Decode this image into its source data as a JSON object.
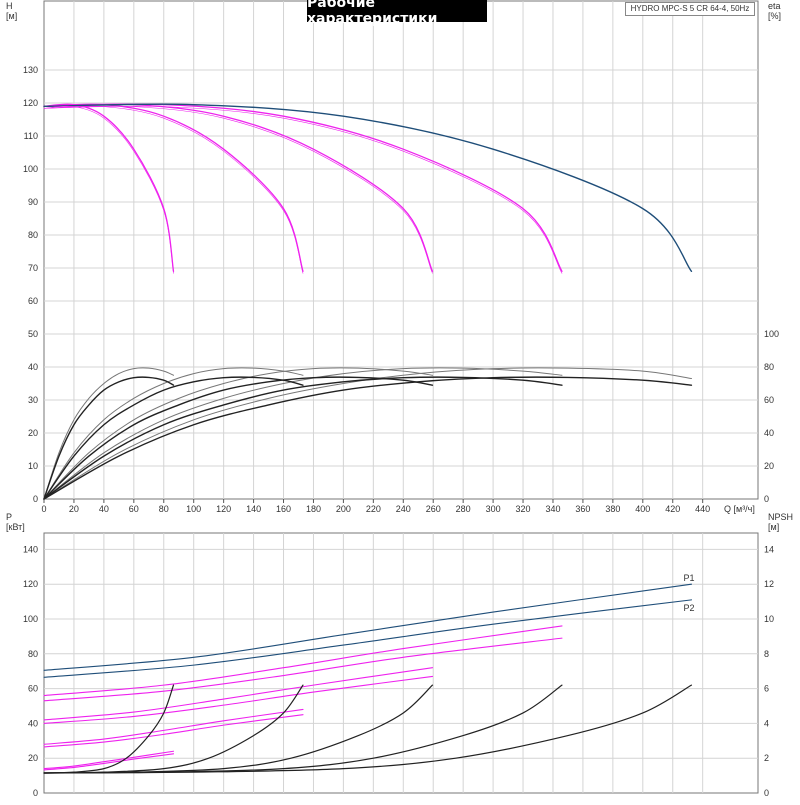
{
  "title": "Рабочие характеристики",
  "model": "HYDRO MPC-S 5 CR 64-4, 50Hz",
  "colors": {
    "pump": "#ee22ee",
    "system": "#1f4e79",
    "efficiency": "#222222",
    "npsh": "#222222",
    "grid": "#d4d4d4"
  },
  "chart_data": [
    {
      "type": "line",
      "panel": "top",
      "xlabel": "Q [м³/ч]",
      "ylabel_left": "H\n[м]",
      "ylabel_right": "eta\n[%]",
      "x_ticks": [
        0,
        20,
        40,
        60,
        80,
        100,
        120,
        140,
        160,
        180,
        200,
        220,
        240,
        260,
        280,
        300,
        320,
        340,
        360,
        380,
        400,
        420,
        440
      ],
      "head_ticks": [
        0,
        10,
        20,
        30,
        40,
        50,
        60,
        70,
        80,
        90,
        100,
        110,
        120,
        130
      ],
      "eta_ticks": [
        0,
        20,
        40,
        60,
        80,
        100
      ],
      "head_curves": [
        {
          "pumps": 1,
          "points": [
            [
              0,
              119
            ],
            [
              20,
              119.5
            ],
            [
              40,
              116
            ],
            [
              60,
              106
            ],
            [
              80,
              88
            ],
            [
              86.5,
              69
            ]
          ]
        },
        {
          "pumps": 2,
          "points": [
            [
              0,
              119
            ],
            [
              40,
              119.5
            ],
            [
              80,
              116
            ],
            [
              120,
              106
            ],
            [
              160,
              88
            ],
            [
              173,
              69
            ]
          ]
        },
        {
          "pumps": 3,
          "points": [
            [
              0,
              119
            ],
            [
              60,
              119.5
            ],
            [
              120,
              116
            ],
            [
              180,
              106
            ],
            [
              240,
              88
            ],
            [
              259.5,
              69
            ]
          ]
        },
        {
          "pumps": 4,
          "points": [
            [
              0,
              119
            ],
            [
              80,
              119.5
            ],
            [
              160,
              116
            ],
            [
              240,
              106
            ],
            [
              320,
              88
            ],
            [
              346,
              69
            ]
          ]
        },
        {
          "pumps": 5,
          "points": [
            [
              0,
              119
            ],
            [
              100,
              119.5
            ],
            [
              200,
              116
            ],
            [
              300,
              106
            ],
            [
              400,
              88
            ],
            [
              432.5,
              69
            ]
          ]
        }
      ],
      "efficiency_curves": [
        {
          "pumps": 1,
          "points": [
            [
              0,
              0
            ],
            [
              10,
              26
            ],
            [
              20,
              45
            ],
            [
              30,
              57
            ],
            [
              40,
              66
            ],
            [
              50,
              71
            ],
            [
              60,
              73.5
            ],
            [
              70,
              73.7
            ],
            [
              80,
              72
            ],
            [
              86.5,
              69
            ]
          ]
        },
        {
          "pumps": 2,
          "points": [
            [
              0,
              0
            ],
            [
              20,
              26
            ],
            [
              40,
              45
            ],
            [
              60,
              57
            ],
            [
              80,
              66
            ],
            [
              100,
              71
            ],
            [
              120,
              73.5
            ],
            [
              140,
              73.7
            ],
            [
              160,
              72
            ],
            [
              173,
              69
            ]
          ]
        },
        {
          "pumps": 3,
          "points": [
            [
              0,
              0
            ],
            [
              30,
              26
            ],
            [
              60,
              45
            ],
            [
              90,
              57
            ],
            [
              120,
              66
            ],
            [
              150,
              71
            ],
            [
              180,
              73.5
            ],
            [
              210,
              73.7
            ],
            [
              240,
              72
            ],
            [
              259.5,
              69
            ]
          ]
        },
        {
          "pumps": 4,
          "points": [
            [
              0,
              0
            ],
            [
              40,
              26
            ],
            [
              80,
              45
            ],
            [
              120,
              57
            ],
            [
              160,
              66
            ],
            [
              200,
              71
            ],
            [
              240,
              73.5
            ],
            [
              280,
              73.7
            ],
            [
              320,
              72
            ],
            [
              346,
              69
            ]
          ]
        },
        {
          "pumps": 5,
          "points": [
            [
              0,
              0
            ],
            [
              50,
              26
            ],
            [
              100,
              45
            ],
            [
              150,
              57
            ],
            [
              200,
              66
            ],
            [
              250,
              71
            ],
            [
              300,
              73.5
            ],
            [
              350,
              73.7
            ],
            [
              400,
              72
            ],
            [
              432.5,
              69
            ]
          ]
        }
      ],
      "efficiency_upper_curves": [
        {
          "pumps": 1,
          "points": [
            [
              0,
              0
            ],
            [
              10,
              28
            ],
            [
              20,
              48
            ],
            [
              30,
              61
            ],
            [
              40,
              70
            ],
            [
              50,
              76
            ],
            [
              60,
              79
            ],
            [
              70,
              79.3
            ],
            [
              80,
              77.5
            ],
            [
              86.5,
              75
            ]
          ]
        },
        {
          "pumps": 2,
          "points": [
            [
              0,
              0
            ],
            [
              20,
              28
            ],
            [
              40,
              48
            ],
            [
              60,
              61
            ],
            [
              80,
              70
            ],
            [
              100,
              76
            ],
            [
              120,
              79
            ],
            [
              140,
              79.3
            ],
            [
              160,
              77.5
            ],
            [
              173,
              75
            ]
          ]
        },
        {
          "pumps": 3,
          "points": [
            [
              0,
              0
            ],
            [
              30,
              28
            ],
            [
              60,
              48
            ],
            [
              90,
              61
            ],
            [
              120,
              70
            ],
            [
              150,
              76
            ],
            [
              180,
              79
            ],
            [
              210,
              79.3
            ],
            [
              240,
              77.5
            ],
            [
              259.5,
              75
            ]
          ]
        },
        {
          "pumps": 4,
          "points": [
            [
              0,
              0
            ],
            [
              40,
              28
            ],
            [
              80,
              48
            ],
            [
              120,
              61
            ],
            [
              160,
              70
            ],
            [
              200,
              76
            ],
            [
              240,
              79
            ],
            [
              280,
              79.3
            ],
            [
              320,
              77.5
            ],
            [
              346,
              75
            ]
          ]
        },
        {
          "pumps": 5,
          "points": [
            [
              0,
              0
            ],
            [
              50,
              28
            ],
            [
              100,
              48
            ],
            [
              150,
              61
            ],
            [
              200,
              70
            ],
            [
              250,
              76
            ],
            [
              300,
              79
            ],
            [
              350,
              79.3
            ],
            [
              400,
              77.5
            ],
            [
              432.5,
              73
            ]
          ]
        }
      ]
    },
    {
      "type": "line",
      "panel": "bottom",
      "ylabel_left": "P\n[кВт]",
      "ylabel_right": "NPSH\n[м]",
      "p_ticks": [
        0,
        20,
        40,
        60,
        80,
        100,
        120,
        140
      ],
      "npsh_ticks": [
        0,
        2,
        4,
        6,
        8,
        10,
        12,
        14
      ],
      "series_labels": [
        "P1",
        "P2"
      ],
      "power_curves": [
        {
          "name": "P1",
          "pumps": 5,
          "points": [
            [
              0,
              70.5
            ],
            [
              100,
              78
            ],
            [
              200,
              91
            ],
            [
              300,
              104
            ],
            [
              432.5,
              120
            ]
          ]
        },
        {
          "name": "P2",
          "pumps": 5,
          "points": [
            [
              0,
              66.5
            ],
            [
              100,
              73.5
            ],
            [
              200,
              85
            ],
            [
              300,
              97
            ],
            [
              432.5,
              111
            ]
          ]
        },
        {
          "pumps": 4,
          "points": [
            [
              0,
              56
            ],
            [
              80,
              62
            ],
            [
              160,
              72
            ],
            [
              240,
              83
            ],
            [
              346,
              96
            ]
          ]
        },
        {
          "pumps": 4,
          "points": [
            [
              0,
              53
            ],
            [
              80,
              58.5
            ],
            [
              160,
              67.5
            ],
            [
              240,
              78
            ],
            [
              346,
              89
            ]
          ]
        },
        {
          "pumps": 3,
          "points": [
            [
              0,
              42
            ],
            [
              60,
              46.5
            ],
            [
              120,
              54
            ],
            [
              180,
              62
            ],
            [
              259.5,
              72
            ]
          ]
        },
        {
          "pumps": 3,
          "points": [
            [
              0,
              40
            ],
            [
              60,
              44
            ],
            [
              120,
              50.5
            ],
            [
              180,
              58
            ],
            [
              259.5,
              67
            ]
          ]
        },
        {
          "pumps": 2,
          "points": [
            [
              0,
              28
            ],
            [
              40,
              31
            ],
            [
              80,
              36
            ],
            [
              120,
              41.5
            ],
            [
              173,
              48
            ]
          ]
        },
        {
          "pumps": 2,
          "points": [
            [
              0,
              26.5
            ],
            [
              40,
              29.3
            ],
            [
              80,
              33.7
            ],
            [
              120,
              39
            ],
            [
              173,
              45
            ]
          ]
        },
        {
          "pumps": 1,
          "points": [
            [
              0,
              14
            ],
            [
              20,
              15.5
            ],
            [
              40,
              18
            ],
            [
              60,
              20.5
            ],
            [
              86.5,
              24
            ]
          ]
        },
        {
          "pumps": 1,
          "points": [
            [
              0,
              13.3
            ],
            [
              20,
              14.7
            ],
            [
              40,
              17
            ],
            [
              60,
              19.5
            ],
            [
              86.5,
              22.5
            ]
          ]
        }
      ],
      "npsh_curves": [
        {
          "pumps": 1,
          "points": [
            [
              0,
              1.15
            ],
            [
              20,
              1.2
            ],
            [
              40,
              1.4
            ],
            [
              55,
              2.0
            ],
            [
              70,
              3.3
            ],
            [
              80,
              4.6
            ],
            [
              86.5,
              6.2
            ]
          ]
        },
        {
          "pumps": 2,
          "points": [
            [
              0,
              1.15
            ],
            [
              40,
              1.2
            ],
            [
              80,
              1.4
            ],
            [
              110,
              2.0
            ],
            [
              140,
              3.3
            ],
            [
              160,
              4.6
            ],
            [
              173,
              6.2
            ]
          ]
        },
        {
          "pumps": 3,
          "points": [
            [
              0,
              1.15
            ],
            [
              60,
              1.2
            ],
            [
              120,
              1.4
            ],
            [
              165,
              2.0
            ],
            [
              210,
              3.3
            ],
            [
              240,
              4.6
            ],
            [
              259.5,
              6.2
            ]
          ]
        },
        {
          "pumps": 4,
          "points": [
            [
              0,
              1.15
            ],
            [
              80,
              1.2
            ],
            [
              160,
              1.4
            ],
            [
              220,
              2.0
            ],
            [
              280,
              3.3
            ],
            [
              320,
              4.6
            ],
            [
              346,
              6.2
            ]
          ]
        },
        {
          "pumps": 5,
          "points": [
            [
              0,
              1.15
            ],
            [
              100,
              1.2
            ],
            [
              200,
              1.4
            ],
            [
              275,
              2.0
            ],
            [
              350,
              3.3
            ],
            [
              400,
              4.6
            ],
            [
              432.5,
              6.2
            ]
          ]
        }
      ]
    }
  ]
}
